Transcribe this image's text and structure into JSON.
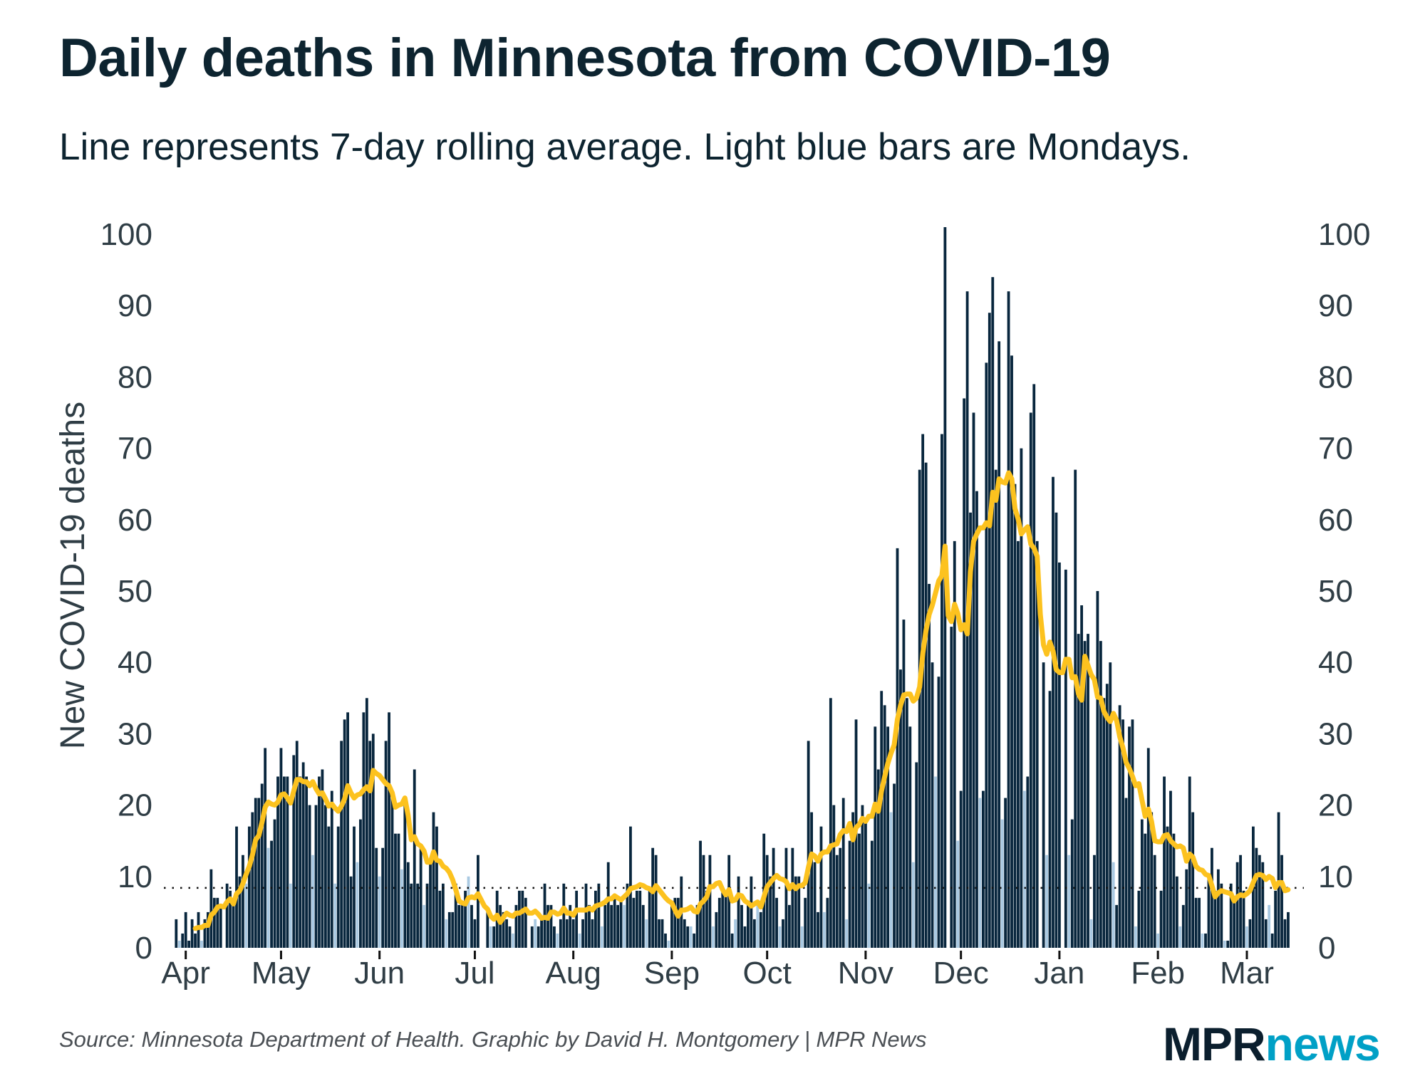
{
  "header": {
    "title": "Daily deaths in Minnesota from COVID-19",
    "subtitle": "Line represents 7-day rolling average. Light blue bars are Mondays."
  },
  "footer": {
    "source": "Source: Minnesota Department of Health. Graphic by David H. Montgomery | MPR News",
    "logo_text": "MPRnews",
    "logo_part1": "MPR",
    "logo_part2": "news"
  },
  "chart_data": {
    "type": "bar",
    "title": "Daily deaths in Minnesota from COVID-19",
    "subtitle": "Line represents 7-day rolling average. Light blue bars are Mondays.",
    "xlabel": "",
    "ylabel": "New COVID-19 deaths",
    "x_range": [
      "2020-03-29",
      "2021-03-14"
    ],
    "x_frequency": "daily",
    "xticks": [
      {
        "date": "2020-04-01",
        "label": "Apr"
      },
      {
        "date": "2020-05-01",
        "label": "May"
      },
      {
        "date": "2020-06-01",
        "label": "Jun"
      },
      {
        "date": "2020-07-01",
        "label": "Jul"
      },
      {
        "date": "2020-08-01",
        "label": "Aug"
      },
      {
        "date": "2020-09-01",
        "label": "Sep"
      },
      {
        "date": "2020-10-01",
        "label": "Oct"
      },
      {
        "date": "2020-11-01",
        "label": "Nov"
      },
      {
        "date": "2020-12-01",
        "label": "Dec"
      },
      {
        "date": "2021-01-01",
        "label": "Jan"
      },
      {
        "date": "2021-02-01",
        "label": "Feb"
      },
      {
        "date": "2021-03-01",
        "label": "Mar"
      }
    ],
    "ylim": [
      0,
      100
    ],
    "yticks": [
      "0",
      "10",
      "20",
      "30",
      "40",
      "50",
      "60",
      "70",
      "80",
      "90",
      "100"
    ],
    "y_axis_sides": [
      "left",
      "right"
    ],
    "grid": false,
    "reference_line": 8.4,
    "rolling_window_days": 7,
    "colors": {
      "bar": "#08263d",
      "monday_bar": "#a9c9e2",
      "rolling_average": "#fcc21f",
      "reference_line": "#111111"
    },
    "series": [
      {
        "values": [
          4,
          1,
          2,
          5,
          1,
          4,
          2,
          5,
          1,
          4,
          5,
          11,
          7,
          7,
          6,
          0,
          9,
          8,
          6,
          17,
          10,
          13,
          9,
          17,
          19,
          21,
          21,
          23,
          28,
          14,
          15,
          18,
          24,
          28,
          24,
          24,
          9,
          27,
          29,
          24,
          26,
          24,
          20,
          13,
          20,
          24,
          25,
          20,
          17,
          22,
          9,
          17,
          29,
          32,
          33,
          10,
          17,
          12,
          18,
          33,
          35,
          29,
          30,
          14,
          10,
          14,
          29,
          33,
          22,
          16,
          16,
          11,
          20,
          12,
          9,
          25,
          9,
          14,
          6,
          9,
          12,
          19,
          17,
          8,
          9,
          4,
          5,
          5,
          9,
          6,
          6,
          8,
          10,
          6,
          4,
          13,
          0,
          0,
          5,
          3,
          3,
          8,
          6,
          5,
          4,
          3,
          2,
          6,
          8,
          8,
          7,
          0,
          3,
          4,
          3,
          4,
          9,
          6,
          6,
          3,
          2,
          4,
          9,
          4,
          6,
          4,
          8,
          2,
          4,
          9,
          6,
          4,
          8,
          9,
          3,
          6,
          12,
          6,
          7,
          6,
          7,
          6,
          9,
          17,
          7,
          8,
          8,
          6,
          4,
          8,
          14,
          13,
          4,
          4,
          2,
          1,
          6,
          7,
          7,
          10,
          4,
          3,
          3,
          2,
          6,
          15,
          13,
          8,
          13,
          3,
          5,
          7,
          8,
          8,
          13,
          2,
          4,
          10,
          6,
          3,
          6,
          10,
          4,
          6,
          5,
          16,
          13,
          10,
          14,
          7,
          3,
          4,
          14,
          6,
          14,
          10,
          10,
          3,
          7,
          29,
          19,
          12,
          5,
          17,
          5,
          7,
          35,
          20,
          13,
          14,
          21,
          4,
          15,
          19,
          32,
          16,
          20,
          18,
          9,
          15,
          31,
          25,
          36,
          34,
          31,
          19,
          23,
          56,
          39,
          46,
          35,
          31,
          12,
          26,
          67,
          72,
          68,
          51,
          40,
          24,
          38,
          72,
          101,
          0,
          45,
          57,
          15,
          22,
          77,
          92,
          61,
          75,
          64,
          21,
          22,
          82,
          89,
          94,
          67,
          85,
          18,
          21,
          92,
          83,
          65,
          57,
          70,
          22,
          24,
          75,
          79,
          57,
          0,
          40,
          13,
          36,
          66,
          61,
          54,
          0,
          53,
          13,
          18,
          67,
          44,
          48,
          43,
          44,
          4,
          13,
          50,
          43,
          35,
          37,
          40,
          12,
          6,
          34,
          32,
          21,
          31,
          32,
          3,
          8,
          18,
          16,
          28,
          19,
          13,
          2,
          8,
          24,
          17,
          22,
          16,
          10,
          3,
          6,
          11,
          24,
          19,
          7,
          7,
          2,
          2,
          10,
          14,
          8,
          11,
          9,
          1,
          1,
          9,
          7,
          12,
          13,
          8,
          3,
          4,
          17,
          14,
          13,
          12,
          4,
          6,
          2,
          8,
          19,
          13,
          4,
          5
        ]
      }
    ]
  }
}
